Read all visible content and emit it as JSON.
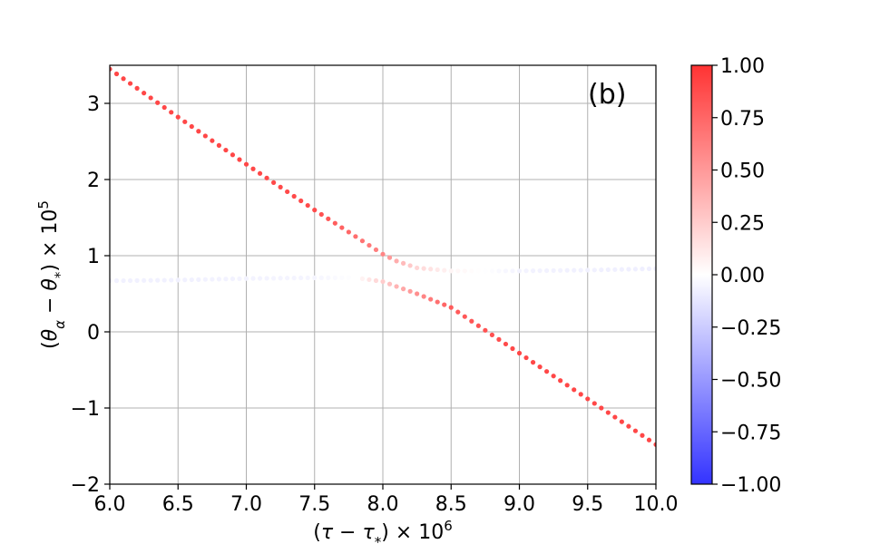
{
  "chart_data": {
    "type": "scatter",
    "panel_label": "(b)",
    "xlabel": "(τ − τ*) × 10⁶",
    "ylabel": "(θα − θ*) × 10⁵",
    "xlim": [
      6.0,
      10.0
    ],
    "ylim": [
      -2,
      3.5
    ],
    "xticks": [
      "6.0",
      "6.5",
      "7.0",
      "7.5",
      "8.0",
      "8.5",
      "9.0",
      "9.5",
      "10.0"
    ],
    "yticks": [
      "−2",
      "−1",
      "0",
      "1",
      "2",
      "3"
    ],
    "grid": true,
    "colormap": "bwr",
    "color_range": [
      -1.0,
      1.0
    ],
    "colorbar_ticks": [
      "−1.00",
      "−0.75",
      "−0.50",
      "−0.25",
      "0.00",
      "0.25",
      "0.50",
      "0.75",
      "1.00"
    ],
    "branch_upper": {
      "description_of_trend": "steep line from top-left to crossing near x=8.0, then flat weak branch to the right",
      "x": [
        6.0,
        6.5,
        7.0,
        7.5,
        8.0,
        8.1,
        8.25,
        8.5,
        9.0,
        9.5,
        10.0
      ],
      "y": [
        3.45,
        2.82,
        2.2,
        1.6,
        1.02,
        0.93,
        0.84,
        0.8,
        0.8,
        0.81,
        0.83
      ],
      "color": [
        0.9,
        0.9,
        0.9,
        0.88,
        0.6,
        0.4,
        0.2,
        0.05,
        -0.06,
        -0.07,
        -0.08
      ]
    },
    "branch_lower": {
      "x": [
        6.0,
        6.5,
        7.0,
        7.5,
        7.8,
        8.0,
        8.25,
        8.5,
        9.0,
        9.5,
        10.0
      ],
      "y": [
        0.67,
        0.68,
        0.7,
        0.71,
        0.71,
        0.66,
        0.5,
        0.32,
        -0.28,
        -0.88,
        -1.48
      ],
      "color": [
        -0.07,
        -0.07,
        -0.06,
        -0.05,
        0.0,
        0.25,
        0.55,
        0.8,
        0.9,
        0.9,
        0.9
      ]
    }
  }
}
